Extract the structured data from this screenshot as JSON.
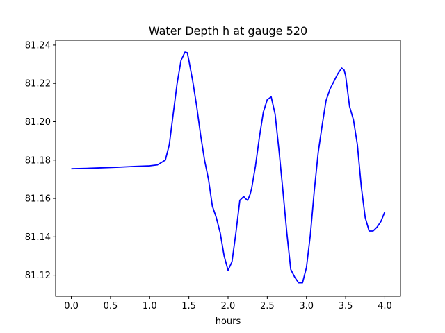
{
  "chart_data": {
    "type": "line",
    "title": "Water Depth h at gauge 520",
    "xlabel": "hours",
    "ylabel": "",
    "xlim": [
      -0.2,
      4.2
    ],
    "ylim": [
      81.109,
      81.2425
    ],
    "x_ticks": [
      0.0,
      0.5,
      1.0,
      1.5,
      2.0,
      2.5,
      3.0,
      3.5,
      4.0
    ],
    "x_tick_labels": [
      "0.0",
      "0.5",
      "1.0",
      "1.5",
      "2.0",
      "2.5",
      "3.0",
      "3.5",
      "4.0"
    ],
    "y_ticks": [
      81.12,
      81.14,
      81.16,
      81.18,
      81.2,
      81.22,
      81.24
    ],
    "y_tick_labels": [
      "81.12",
      "81.14",
      "81.16",
      "81.18",
      "81.20",
      "81.22",
      "81.24"
    ],
    "grid": false,
    "legend": "none",
    "series": [
      {
        "color": "#0000ff",
        "x": [
          0.0,
          0.2,
          0.4,
          0.6,
          0.8,
          1.0,
          1.1,
          1.2,
          1.25,
          1.3,
          1.35,
          1.4,
          1.45,
          1.48,
          1.5,
          1.55,
          1.6,
          1.65,
          1.7,
          1.75,
          1.8,
          1.85,
          1.9,
          1.95,
          2.0,
          2.05,
          2.1,
          2.15,
          2.2,
          2.22,
          2.25,
          2.28,
          2.3,
          2.35,
          2.4,
          2.45,
          2.5,
          2.55,
          2.6,
          2.65,
          2.7,
          2.75,
          2.8,
          2.85,
          2.9,
          2.95,
          3.0,
          3.05,
          3.1,
          3.15,
          3.2,
          3.25,
          3.3,
          3.35,
          3.4,
          3.45,
          3.48,
          3.5,
          3.55,
          3.6,
          3.65,
          3.7,
          3.75,
          3.8,
          3.85,
          3.9,
          3.95,
          4.0
        ],
        "y": [
          81.1755,
          81.1757,
          81.176,
          81.1763,
          81.1767,
          81.177,
          81.1775,
          81.18,
          81.188,
          81.204,
          81.22,
          81.232,
          81.2363,
          81.236,
          81.232,
          81.221,
          81.208,
          81.193,
          81.18,
          81.17,
          81.156,
          81.15,
          81.142,
          81.13,
          81.1225,
          81.127,
          81.142,
          81.159,
          81.161,
          81.16,
          81.159,
          81.162,
          81.165,
          81.177,
          81.192,
          81.205,
          81.2115,
          81.213,
          81.204,
          81.185,
          81.164,
          81.142,
          81.123,
          81.119,
          81.116,
          81.116,
          81.124,
          81.141,
          81.164,
          81.184,
          81.198,
          81.211,
          81.217,
          81.221,
          81.225,
          81.228,
          81.227,
          81.224,
          81.208,
          81.201,
          81.188,
          81.166,
          81.15,
          81.143,
          81.143,
          81.145,
          81.148,
          81.153
        ]
      }
    ]
  }
}
